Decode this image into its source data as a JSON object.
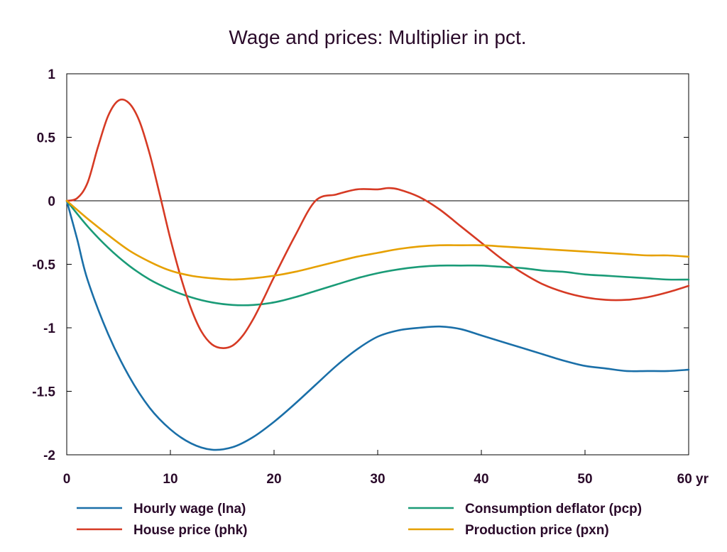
{
  "chart_data": {
    "type": "line",
    "title": "Wage and prices: Multiplier in pct.",
    "xlabel": "",
    "ylabel": "",
    "x_unit": "yr",
    "xlim": [
      0,
      60
    ],
    "ylim": [
      -2,
      1
    ],
    "xticks": [
      0,
      10,
      20,
      30,
      40,
      50,
      60
    ],
    "xtick_labels": [
      "0",
      "10",
      "20",
      "30",
      "40",
      "50",
      "60 yr"
    ],
    "yticks": [
      1,
      0.5,
      0,
      -0.5,
      -1,
      -1.5,
      -2
    ],
    "ytick_labels": [
      "1",
      "0.5",
      "0",
      "-0.5",
      "-1",
      "-1.5",
      "-2"
    ],
    "zero_line": true,
    "grid": false,
    "legend_position": "bottom",
    "series": [
      {
        "name": "Hourly wage (lna)",
        "color": "#1a6fa8",
        "x": [
          0,
          1,
          2,
          4,
          6,
          8,
          10,
          12,
          14,
          16,
          18,
          20,
          22,
          24,
          26,
          28,
          30,
          32,
          34,
          36,
          38,
          40,
          42,
          44,
          46,
          48,
          50,
          52,
          54,
          56,
          58,
          60
        ],
        "y": [
          0,
          -0.3,
          -0.62,
          -1.05,
          -1.38,
          -1.63,
          -1.8,
          -1.91,
          -1.96,
          -1.94,
          -1.86,
          -1.74,
          -1.6,
          -1.45,
          -1.3,
          -1.17,
          -1.07,
          -1.02,
          -1.0,
          -0.99,
          -1.01,
          -1.06,
          -1.11,
          -1.16,
          -1.21,
          -1.26,
          -1.3,
          -1.32,
          -1.34,
          -1.34,
          -1.34,
          -1.33
        ]
      },
      {
        "name": "Consumption deflator (pcp)",
        "color": "#1a9b77",
        "x": [
          0,
          2,
          4,
          6,
          8,
          10,
          12,
          14,
          16,
          18,
          20,
          22,
          24,
          26,
          28,
          30,
          32,
          34,
          36,
          38,
          40,
          42,
          44,
          46,
          48,
          50,
          52,
          54,
          56,
          58,
          60
        ],
        "y": [
          0,
          -0.2,
          -0.37,
          -0.51,
          -0.62,
          -0.7,
          -0.76,
          -0.8,
          -0.82,
          -0.82,
          -0.8,
          -0.76,
          -0.71,
          -0.66,
          -0.61,
          -0.57,
          -0.54,
          -0.52,
          -0.51,
          -0.51,
          -0.51,
          -0.52,
          -0.53,
          -0.55,
          -0.56,
          -0.58,
          -0.59,
          -0.6,
          -0.61,
          -0.62,
          -0.62
        ]
      },
      {
        "name": "House price (phk)",
        "color": "#d63a24",
        "x": [
          0,
          1,
          2,
          3,
          4,
          5,
          6,
          7,
          8,
          9,
          10,
          11,
          12,
          13,
          14,
          15,
          16,
          17,
          18,
          19,
          20,
          22,
          24,
          26,
          28,
          30,
          31,
          32,
          34,
          36,
          38,
          40,
          42,
          44,
          46,
          48,
          50,
          52,
          54,
          56,
          58,
          60
        ],
        "y": [
          0,
          0.02,
          0.14,
          0.42,
          0.67,
          0.79,
          0.77,
          0.63,
          0.37,
          0.04,
          -0.3,
          -0.6,
          -0.85,
          -1.03,
          -1.13,
          -1.16,
          -1.14,
          -1.06,
          -0.93,
          -0.77,
          -0.6,
          -0.28,
          0.0,
          0.05,
          0.09,
          0.09,
          0.1,
          0.09,
          0.03,
          -0.07,
          -0.2,
          -0.33,
          -0.46,
          -0.57,
          -0.66,
          -0.72,
          -0.76,
          -0.78,
          -0.78,
          -0.76,
          -0.72,
          -0.67
        ]
      },
      {
        "name": "Production price (pxn)",
        "color": "#e6a000",
        "x": [
          0,
          2,
          4,
          6,
          8,
          10,
          12,
          14,
          16,
          18,
          20,
          22,
          24,
          26,
          28,
          30,
          32,
          34,
          36,
          38,
          40,
          42,
          44,
          46,
          48,
          50,
          52,
          54,
          56,
          58,
          60
        ],
        "y": [
          0,
          -0.14,
          -0.27,
          -0.39,
          -0.48,
          -0.55,
          -0.59,
          -0.61,
          -0.62,
          -0.61,
          -0.59,
          -0.56,
          -0.52,
          -0.48,
          -0.44,
          -0.41,
          -0.38,
          -0.36,
          -0.35,
          -0.35,
          -0.35,
          -0.36,
          -0.37,
          -0.38,
          -0.39,
          -0.4,
          -0.41,
          -0.42,
          -0.43,
          -0.43,
          -0.44
        ]
      }
    ]
  }
}
